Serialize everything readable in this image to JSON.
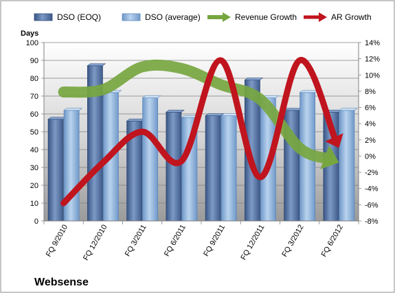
{
  "chart_data": {
    "type": "bar",
    "title": "Websense",
    "ylabel": "Days",
    "ylim": [
      0,
      100
    ],
    "y_ticks": [
      "0",
      "10",
      "20",
      "30",
      "40",
      "50",
      "60",
      "70",
      "80",
      "90",
      "100"
    ],
    "y2lim": [
      -8,
      14
    ],
    "y2_ticks": [
      "-8%",
      "-6%",
      "-4%",
      "-2%",
      "0%",
      "2%",
      "4%",
      "6%",
      "8%",
      "10%",
      "12%",
      "14%"
    ],
    "categories": [
      "FQ 9/2010",
      "FQ 12/2010",
      "FQ 3/2011",
      "FQ 6/2011",
      "FQ 9/2011",
      "FQ 12/2011",
      "FQ 3/2012",
      "FQ 6/2012"
    ],
    "legend_position": "top",
    "grid": true,
    "series": [
      {
        "name": "DSO (EOQ)",
        "type": "bar",
        "axis": "left",
        "color": "#4f6d9e",
        "values": [
          57,
          87,
          56,
          61,
          59,
          79,
          62,
          61
        ]
      },
      {
        "name": "DSO (average)",
        "type": "bar",
        "axis": "left",
        "color": "#8eb4e0",
        "values": [
          62,
          72,
          69,
          58,
          59,
          69,
          72,
          62
        ]
      },
      {
        "name": "Revenue Growth",
        "type": "line-arrow",
        "axis": "right",
        "color": "#77a640",
        "values": [
          7.9,
          8.2,
          11.0,
          10.8,
          8.8,
          7.0,
          1.0,
          -0.8
        ]
      },
      {
        "name": "AR Growth",
        "type": "line-arrow",
        "axis": "right",
        "color": "#c0141e",
        "values": [
          -5.8,
          -0.8,
          3.0,
          -0.6,
          11.8,
          -2.6,
          11.8,
          1.0
        ]
      }
    ]
  }
}
